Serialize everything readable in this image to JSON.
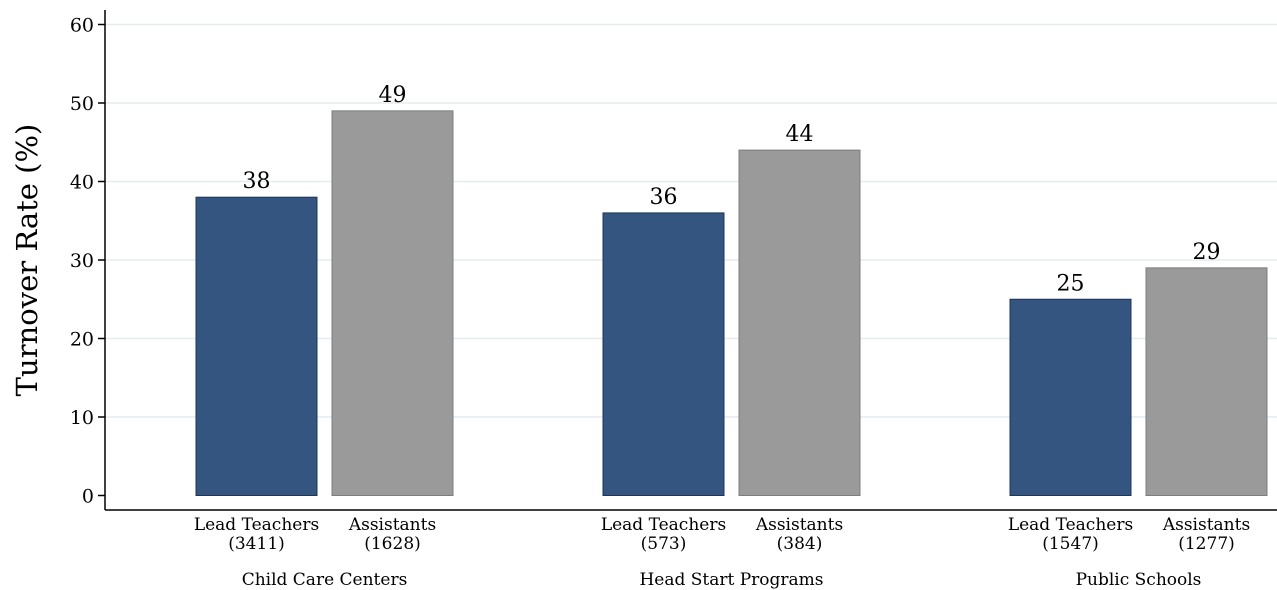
{
  "chart_data": {
    "type": "bar",
    "ylabel": "Turnover Rate (%)",
    "xlabel": "",
    "ylim": [
      0,
      60
    ],
    "yticks": [
      0,
      10,
      20,
      30,
      40,
      50,
      60
    ],
    "grid": true,
    "colors": {
      "lead": "#34557f",
      "assistant": "#9a9a9a",
      "grid": "#e3ecef",
      "axis": "#000000"
    },
    "groups": [
      {
        "name": "Child Care Centers",
        "bars": [
          {
            "label": "Lead Teachers",
            "n": "(3411)",
            "value": 38,
            "kind": "lead"
          },
          {
            "label": "Assistants",
            "n": "(1628)",
            "value": 49,
            "kind": "assistant"
          }
        ]
      },
      {
        "name": "Head Start Programs",
        "bars": [
          {
            "label": "Lead Teachers",
            "n": "(573)",
            "value": 36,
            "kind": "lead"
          },
          {
            "label": "Assistants",
            "n": "(384)",
            "value": 44,
            "kind": "assistant"
          }
        ]
      },
      {
        "name": "Public Schools",
        "bars": [
          {
            "label": "Lead Teachers",
            "n": "(1547)",
            "value": 25,
            "kind": "lead"
          },
          {
            "label": "Assistants",
            "n": "(1277)",
            "value": 29,
            "kind": "assistant"
          }
        ]
      }
    ]
  }
}
